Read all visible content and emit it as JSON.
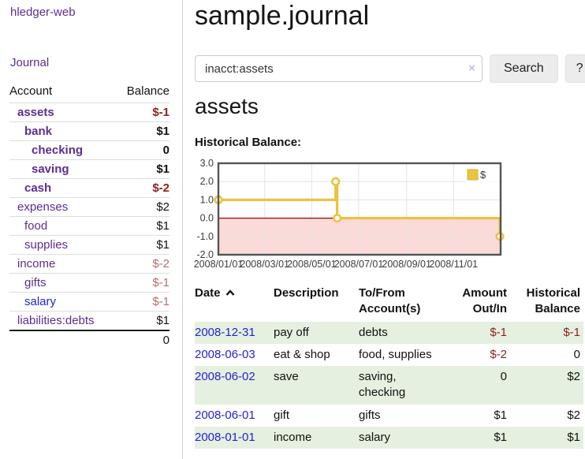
{
  "colors": {
    "link_purple": "#5c2d91",
    "link_blue": "#2323d3",
    "negative_strong": "#8f1e1e",
    "negative_soft": "#b46e70",
    "row_green": "#e5f0e0",
    "series_gold": "#edc240"
  },
  "sidebar": {
    "brand": "hledger-web",
    "journal_link": "Journal",
    "accounts": {
      "col_account": "Account",
      "col_balance": "Balance",
      "rows": [
        {
          "name": "assets",
          "balance": "$-1",
          "level": 1,
          "in_filter": true,
          "name_color": "purple",
          "balance_class": "neg-strong"
        },
        {
          "name": "bank",
          "balance": "$1",
          "level": 2,
          "in_filter": true,
          "name_color": "purple",
          "balance_class": ""
        },
        {
          "name": "checking",
          "balance": "0",
          "level": 3,
          "in_filter": true,
          "name_color": "purple",
          "balance_class": ""
        },
        {
          "name": "saving",
          "balance": "$1",
          "level": 3,
          "in_filter": true,
          "name_color": "purple",
          "balance_class": ""
        },
        {
          "name": "cash",
          "balance": "$-2",
          "level": 2,
          "in_filter": true,
          "name_color": "purple",
          "balance_class": "neg-strong"
        },
        {
          "name": "expenses",
          "balance": "$2",
          "level": 1,
          "in_filter": false,
          "name_color": "purple",
          "balance_class": ""
        },
        {
          "name": "food",
          "balance": "$1",
          "level": 2,
          "in_filter": false,
          "name_color": "purple",
          "balance_class": ""
        },
        {
          "name": "supplies",
          "balance": "$1",
          "level": 2,
          "in_filter": false,
          "name_color": "purple",
          "balance_class": ""
        },
        {
          "name": "income",
          "balance": "$-2",
          "level": 1,
          "in_filter": false,
          "name_color": "purple",
          "balance_class": "neg-soft"
        },
        {
          "name": "gifts",
          "balance": "$-1",
          "level": 2,
          "in_filter": false,
          "name_color": "purple",
          "balance_class": "neg-soft"
        },
        {
          "name": "salary",
          "balance": "$-1",
          "level": 2,
          "in_filter": false,
          "name_color": "blue",
          "balance_class": "neg-soft"
        },
        {
          "name": "liabilities:debts",
          "balance": "$1",
          "level": 1,
          "in_filter": false,
          "name_color": "purple",
          "balance_class": ""
        }
      ],
      "total": "0"
    }
  },
  "main": {
    "title": "sample.journal",
    "search": {
      "query": "inacct:assets",
      "clear_icon": "×",
      "search_label": "Search",
      "help_label": "?"
    },
    "heading": "assets",
    "chart_title": "Historical Balance:"
  },
  "chart_data": {
    "type": "line",
    "step": true,
    "title": "Historical Balance",
    "legend": [
      {
        "label": "$",
        "color": "#edc240"
      }
    ],
    "legend_position": "top-right",
    "x_ticks": [
      "2008/01/01",
      "2008/03/01",
      "2008/05/01",
      "2008/07/01",
      "2008/09/01",
      "2008/11/01"
    ],
    "y_ticks": [
      3.0,
      2.0,
      1.0,
      0.0,
      -1.0,
      -2.0
    ],
    "ylim": [
      -2,
      3
    ],
    "x_start": "2008/01/01",
    "x_span_days": 366,
    "series": [
      {
        "name": "$",
        "color": "#edc240",
        "points": [
          [
            "2008/01/01",
            1
          ],
          [
            "2008/06/01",
            2
          ],
          [
            "2008/06/03",
            0
          ],
          [
            "2008/12/31",
            -1
          ]
        ]
      }
    ],
    "grid_on": true,
    "grid_color": "#e4e4e4",
    "border_color": "#545454",
    "zero_line_color": "#a00000",
    "negative_region_fill": "#fbdada"
  },
  "register": {
    "headers": {
      "date": "Date",
      "description": "Description",
      "tofrom": "To/From Account(s)",
      "amount": "Amount Out/In",
      "balance": "Historical Balance"
    },
    "rows": [
      {
        "date": "2008-12-31",
        "description": "pay off",
        "tofrom": "debts",
        "amount": "$-1",
        "balance": "$-1"
      },
      {
        "date": "2008-06-03",
        "description": "eat & shop",
        "tofrom": "food, supplies",
        "amount": "$-2",
        "balance": "0"
      },
      {
        "date": "2008-06-02",
        "description": "save",
        "tofrom": "saving, checking",
        "amount": "0",
        "balance": "$2"
      },
      {
        "date": "2008-06-01",
        "description": "gift",
        "tofrom": "gifts",
        "amount": "$1",
        "balance": "$2"
      },
      {
        "date": "2008-01-01",
        "description": "income",
        "tofrom": "salary",
        "amount": "$1",
        "balance": "$1"
      }
    ]
  }
}
